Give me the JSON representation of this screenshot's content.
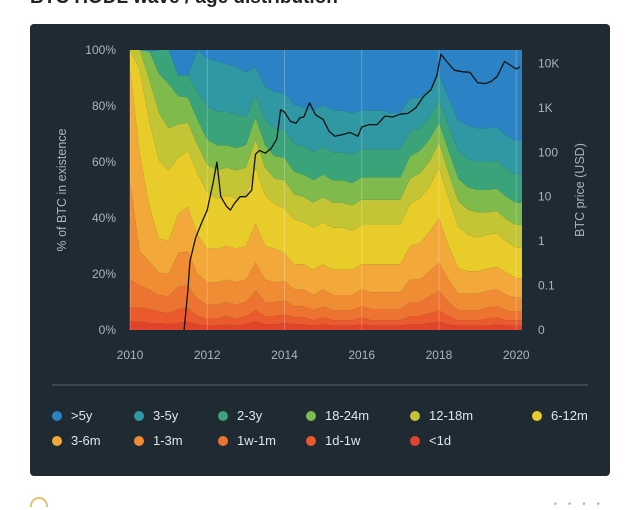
{
  "page": {
    "title": "BTC HODL wave / age distribution"
  },
  "chart_data": {
    "type": "area",
    "title": "",
    "xlabel": "",
    "ylabel": "% of BTC in existence",
    "y2label": "BTC price (USD)",
    "xlim": [
      2010,
      2020.15
    ],
    "ylim": [
      0,
      100
    ],
    "y2_scale": "log",
    "y2lim": [
      0.01,
      20000
    ],
    "x_ticks": [
      2010,
      2012,
      2014,
      2016,
      2018,
      2020
    ],
    "y_ticks": [
      0,
      20,
      40,
      60,
      80,
      100
    ],
    "y_tick_labels": [
      "0%",
      "20%",
      "40%",
      "60%",
      "80%",
      "100%"
    ],
    "y2_ticks": [
      0.01,
      0.1,
      1,
      10,
      100,
      1000,
      10000
    ],
    "y2_tick_labels": [
      "0",
      "0.1",
      "1",
      "10",
      "100",
      "1K",
      "10K"
    ],
    "grid": true,
    "legend_position": "bottom",
    "x": [
      2010.0,
      2010.25,
      2010.5,
      2010.75,
      2011.0,
      2011.25,
      2011.5,
      2011.75,
      2012.0,
      2012.25,
      2012.5,
      2012.75,
      2013.0,
      2013.25,
      2013.5,
      2013.75,
      2014.0,
      2014.25,
      2014.5,
      2014.75,
      2015.0,
      2015.25,
      2015.5,
      2015.75,
      2016.0,
      2016.25,
      2016.5,
      2016.75,
      2017.0,
      2017.25,
      2017.5,
      2017.75,
      2018.0,
      2018.25,
      2018.5,
      2018.75,
      2019.0,
      2019.25,
      2019.5,
      2019.75,
      2020.0,
      2020.15
    ],
    "series": [
      {
        "name": "<1d",
        "color": "#e0442b",
        "values": [
          3,
          3,
          2.5,
          2.5,
          2,
          2.5,
          3,
          2,
          1.5,
          1.5,
          2,
          1.5,
          2,
          3,
          2,
          2,
          2.5,
          2,
          2,
          1.5,
          2,
          1.5,
          1.5,
          1.5,
          2,
          1.5,
          1.5,
          1.5,
          1.5,
          2,
          2,
          2.5,
          3,
          2,
          1.5,
          1.5,
          1.5,
          1.5,
          2,
          1.5,
          1.5,
          1.5
        ]
      },
      {
        "name": "1d-1w",
        "color": "#ea5a2c",
        "values": [
          5,
          5,
          5,
          4,
          4,
          5,
          5,
          3,
          2.5,
          2.5,
          3,
          2.5,
          3,
          4,
          3,
          3,
          3,
          2.5,
          2.5,
          2,
          2.5,
          2,
          2,
          2,
          2.5,
          2,
          2,
          2,
          2,
          3,
          3,
          3.5,
          4,
          3,
          2,
          2,
          2,
          2.5,
          2.5,
          2,
          2,
          2
        ]
      },
      {
        "name": "1w-1m",
        "color": "#ed7430",
        "values": [
          10,
          8,
          7,
          6,
          6,
          8,
          8,
          6,
          5,
          5,
          5,
          5,
          5,
          7,
          5,
          5,
          5,
          4,
          4,
          3.5,
          4,
          3.5,
          3.5,
          3.5,
          4,
          4,
          4,
          4,
          4,
          5,
          5,
          6,
          7,
          5,
          3.5,
          3.5,
          3.5,
          4,
          4,
          3.5,
          3,
          3
        ]
      },
      {
        "name": "1-3m",
        "color": "#f08c33",
        "values": [
          35,
          12,
          10,
          8,
          8,
          12,
          12,
          9,
          8,
          8,
          8,
          8,
          8,
          10,
          8,
          7,
          7,
          6,
          6,
          5.5,
          6,
          5.5,
          5.5,
          5.5,
          6,
          6,
          6,
          6,
          6,
          8,
          8,
          9,
          10,
          8,
          6,
          6,
          6,
          6,
          6,
          5.5,
          5,
          5
        ]
      },
      {
        "name": "3-6m",
        "color": "#f2a93a",
        "values": [
          40,
          35,
          20,
          12,
          12,
          14,
          16,
          14,
          12,
          12,
          12,
          12,
          12,
          14,
          12,
          12,
          10,
          9,
          9,
          9,
          9,
          9,
          9,
          9,
          9,
          10,
          10,
          10,
          10,
          12,
          13,
          14,
          16,
          12,
          9,
          8,
          8,
          8,
          8,
          8,
          7,
          7
        ]
      },
      {
        "name": "6-12m",
        "color": "#e8cd2a",
        "values": [
          7,
          30,
          30,
          28,
          25,
          20,
          20,
          22,
          20,
          18,
          18,
          18,
          18,
          20,
          18,
          16,
          16,
          16,
          15,
          15,
          15,
          15,
          15,
          14,
          14,
          14,
          14,
          14,
          14,
          15,
          16,
          16,
          18,
          17,
          15,
          13,
          12,
          12,
          12,
          11,
          11,
          11
        ]
      },
      {
        "name": "12-18m",
        "color": "#c3c534",
        "values": [
          0,
          7,
          15,
          17,
          15,
          12,
          10,
          10,
          10,
          10,
          10,
          10,
          10,
          10,
          10,
          9,
          10,
          9,
          9,
          9,
          9,
          9,
          9,
          9,
          9,
          9,
          9,
          9,
          9,
          9,
          9,
          9,
          9,
          9,
          9,
          9,
          9,
          8,
          8,
          8,
          8,
          8
        ]
      },
      {
        "name": "18-24m",
        "color": "#7fba4c",
        "values": [
          0,
          0,
          10,
          14,
          16,
          10,
          9,
          9,
          9,
          9,
          8,
          8,
          8,
          8,
          8,
          8,
          8,
          8,
          8,
          8,
          8,
          8,
          8,
          8,
          8,
          8,
          8,
          8,
          8,
          8,
          8,
          8,
          7,
          8,
          8,
          8,
          8,
          8,
          8,
          8,
          8,
          8
        ]
      },
      {
        "name": "2-3y",
        "color": "#3aa37a",
        "values": [
          0,
          0,
          0,
          8.5,
          12,
          7.5,
          8,
          10,
          12,
          12,
          12,
          12,
          10,
          8,
          9,
          10,
          10,
          10,
          10,
          10,
          10,
          10,
          10,
          10,
          10,
          10,
          10,
          10,
          10,
          9,
          8,
          8,
          8,
          9,
          10,
          10,
          10,
          10,
          10,
          10,
          10,
          10
        ]
      },
      {
        "name": "3-5y",
        "color": "#2f98a2",
        "values": [
          0,
          0,
          0,
          0,
          0,
          0,
          0,
          15,
          17,
          18,
          17,
          17,
          16,
          10,
          12,
          13,
          13,
          14,
          14,
          15,
          15,
          15,
          15,
          15,
          14,
          14,
          14,
          13,
          13,
          12,
          11,
          10,
          9,
          10,
          11,
          12,
          12,
          12,
          12,
          12,
          12,
          12
        ]
      },
      {
        "name": ">5y",
        "color": "#2b82c4",
        "values": [
          0,
          0,
          0,
          0,
          0,
          0,
          0,
          0,
          0,
          0,
          0,
          0,
          0,
          0,
          0,
          0,
          0,
          0,
          0,
          0,
          0,
          0,
          0,
          0,
          0,
          0,
          0,
          0,
          0,
          0,
          0,
          0,
          0,
          0,
          0,
          0,
          0,
          0,
          0,
          0,
          0,
          0
        ]
      }
    ],
    "price": {
      "x": [
        2011.4,
        2011.5,
        2011.55,
        2011.7,
        2011.85,
        2012.0,
        2012.15,
        2012.25,
        2012.35,
        2012.5,
        2012.6,
        2012.7,
        2012.85,
        2013.0,
        2013.15,
        2013.25,
        2013.35,
        2013.5,
        2013.65,
        2013.8,
        2013.9,
        2014.0,
        2014.15,
        2014.3,
        2014.4,
        2014.5,
        2014.65,
        2014.8,
        2015.0,
        2015.15,
        2015.3,
        2015.5,
        2015.7,
        2015.9,
        2016.0,
        2016.2,
        2016.4,
        2016.6,
        2016.8,
        2017.0,
        2017.2,
        2017.4,
        2017.6,
        2017.8,
        2017.95,
        2018.05,
        2018.2,
        2018.4,
        2018.6,
        2018.8,
        2019.0,
        2019.2,
        2019.35,
        2019.5,
        2019.7,
        2019.9,
        2020.0,
        2020.1
      ],
      "y": [
        0.01,
        0.08,
        0.35,
        1.2,
        2.5,
        5,
        20,
        60,
        10,
        6,
        5,
        7,
        10,
        10,
        14,
        90,
        110,
        95,
        120,
        200,
        900,
        800,
        500,
        450,
        600,
        620,
        1300,
        700,
        550,
        300,
        230,
        250,
        280,
        230,
        370,
        420,
        420,
        650,
        620,
        720,
        750,
        1000,
        1800,
        2600,
        5500,
        16000,
        11000,
        7000,
        6500,
        6300,
        3700,
        3500,
        3900,
        5000,
        11000,
        8500,
        7500,
        8300
      ]
    }
  }
}
